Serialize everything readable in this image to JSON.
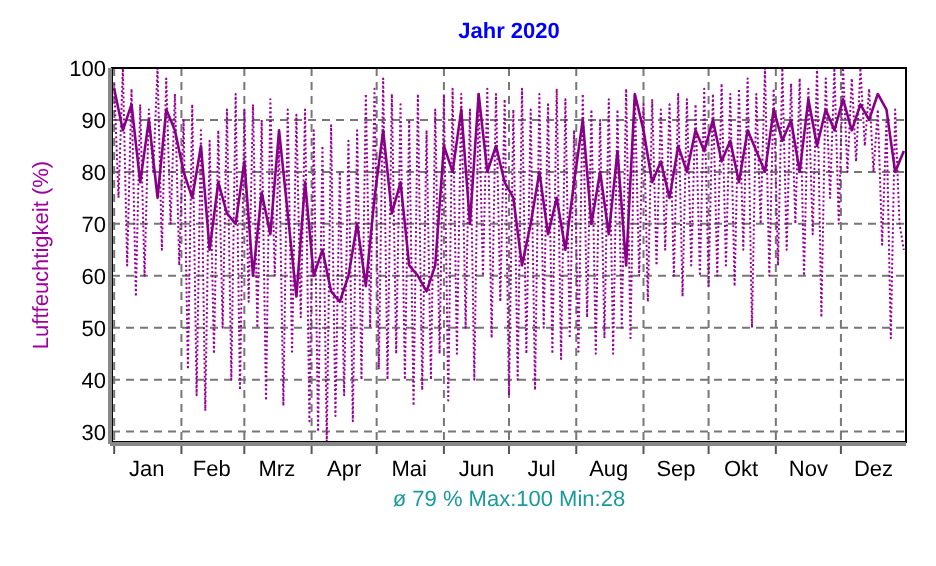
{
  "chart_data": {
    "type": "line",
    "title": "Jahr 2020",
    "ylabel": "Luftfeuchtigkeit (%)",
    "annotations": [
      "ø 79 % Max:100 Min:28"
    ],
    "xlim": [
      "2019-12-31",
      "2020-12-31"
    ],
    "ylim": [
      28,
      100
    ],
    "yticks": [
      30,
      40,
      50,
      60,
      70,
      80,
      90,
      100
    ],
    "xticks": [
      {
        "value": "2020-01-01",
        "label": null
      },
      {
        "value": "2020-01-16",
        "label": "Jan"
      },
      {
        "value": "2020-02-01",
        "label": null
      },
      {
        "value": "2020-02-15",
        "label": "Feb"
      },
      {
        "value": "2020-03-01",
        "label": null
      },
      {
        "value": "2020-03-16",
        "label": "Mrz"
      },
      {
        "value": "2020-04-01",
        "label": null
      },
      {
        "value": "2020-04-16",
        "label": "Apr"
      },
      {
        "value": "2020-05-01",
        "label": null
      },
      {
        "value": "2020-05-16",
        "label": "Mai"
      },
      {
        "value": "2020-06-01",
        "label": null
      },
      {
        "value": "2020-06-16",
        "label": "Jun"
      },
      {
        "value": "2020-07-01",
        "label": null
      },
      {
        "value": "2020-07-16",
        "label": "Jul"
      },
      {
        "value": "2020-08-01",
        "label": null
      },
      {
        "value": "2020-08-16",
        "label": "Aug"
      },
      {
        "value": "2020-09-01",
        "label": null
      },
      {
        "value": "2020-09-16",
        "label": "Sep"
      },
      {
        "value": "2020-10-01",
        "label": null
      },
      {
        "value": "2020-10-16",
        "label": "Okt"
      },
      {
        "value": "2020-11-01",
        "label": null
      },
      {
        "value": "2020-11-16",
        "label": "Nov"
      },
      {
        "value": "2020-12-01",
        "label": null
      },
      {
        "value": "2020-12-16",
        "label": "Dez"
      }
    ],
    "grid": true,
    "marker": "none",
    "series": [
      {
        "color": "#990099",
        "line_style": "dotted",
        "x": [
          "2020-01-01",
          "2020-01-03",
          "2020-01-05",
          "2020-01-07",
          "2020-01-09",
          "2020-01-11",
          "2020-01-13",
          "2020-01-15",
          "2020-01-17",
          "2020-01-19",
          "2020-01-21",
          "2020-01-23",
          "2020-01-25",
          "2020-01-27",
          "2020-01-29",
          "2020-01-31",
          "2020-02-02",
          "2020-02-04",
          "2020-02-06",
          "2020-02-08",
          "2020-02-10",
          "2020-02-12",
          "2020-02-14",
          "2020-02-16",
          "2020-02-18",
          "2020-02-20",
          "2020-02-22",
          "2020-02-24",
          "2020-02-26",
          "2020-02-28",
          "2020-03-01",
          "2020-03-03",
          "2020-03-05",
          "2020-03-07",
          "2020-03-09",
          "2020-03-11",
          "2020-03-13",
          "2020-03-15",
          "2020-03-17",
          "2020-03-19",
          "2020-03-21",
          "2020-03-23",
          "2020-03-25",
          "2020-03-27",
          "2020-03-29",
          "2020-03-31",
          "2020-04-02",
          "2020-04-04",
          "2020-04-06",
          "2020-04-08",
          "2020-04-10",
          "2020-04-12",
          "2020-04-14",
          "2020-04-16",
          "2020-04-18",
          "2020-04-20",
          "2020-04-22",
          "2020-04-24",
          "2020-04-26",
          "2020-04-28",
          "2020-04-30",
          "2020-05-02",
          "2020-05-04",
          "2020-05-06",
          "2020-05-08",
          "2020-05-10",
          "2020-05-12",
          "2020-05-14",
          "2020-05-16",
          "2020-05-18",
          "2020-05-20",
          "2020-05-22",
          "2020-05-24",
          "2020-05-26",
          "2020-05-28",
          "2020-05-30",
          "2020-06-01",
          "2020-06-03",
          "2020-06-05",
          "2020-06-07",
          "2020-06-09",
          "2020-06-11",
          "2020-06-13",
          "2020-06-15",
          "2020-06-17",
          "2020-06-19",
          "2020-06-21",
          "2020-06-23",
          "2020-06-25",
          "2020-06-27",
          "2020-06-29",
          "2020-07-01",
          "2020-07-03",
          "2020-07-05",
          "2020-07-07",
          "2020-07-09",
          "2020-07-11",
          "2020-07-13",
          "2020-07-15",
          "2020-07-17",
          "2020-07-19",
          "2020-07-21",
          "2020-07-23",
          "2020-07-25",
          "2020-07-27",
          "2020-07-29",
          "2020-07-31",
          "2020-08-02",
          "2020-08-04",
          "2020-08-06",
          "2020-08-08",
          "2020-08-10",
          "2020-08-12",
          "2020-08-14",
          "2020-08-16",
          "2020-08-18",
          "2020-08-20",
          "2020-08-22",
          "2020-08-24",
          "2020-08-26",
          "2020-08-28",
          "2020-08-30",
          "2020-09-01",
          "2020-09-03",
          "2020-09-05",
          "2020-09-07",
          "2020-09-09",
          "2020-09-11",
          "2020-09-13",
          "2020-09-15",
          "2020-09-17",
          "2020-09-19",
          "2020-09-21",
          "2020-09-23",
          "2020-09-25",
          "2020-09-27",
          "2020-09-29",
          "2020-10-01",
          "2020-10-03",
          "2020-10-05",
          "2020-10-07",
          "2020-10-09",
          "2020-10-11",
          "2020-10-13",
          "2020-10-15",
          "2020-10-17",
          "2020-10-19",
          "2020-10-21",
          "2020-10-23",
          "2020-10-25",
          "2020-10-27",
          "2020-10-29",
          "2020-10-31",
          "2020-11-02",
          "2020-11-04",
          "2020-11-06",
          "2020-11-08",
          "2020-11-10",
          "2020-11-12",
          "2020-11-14",
          "2020-11-16",
          "2020-11-18",
          "2020-11-20",
          "2020-11-22",
          "2020-11-24",
          "2020-11-26",
          "2020-11-28",
          "2020-11-30",
          "2020-12-02",
          "2020-12-04",
          "2020-12-06",
          "2020-12-08",
          "2020-12-10",
          "2020-12-12",
          "2020-12-14",
          "2020-12-16",
          "2020-12-18",
          "2020-12-20",
          "2020-12-22",
          "2020-12-24",
          "2020-12-26",
          "2020-12-28",
          "2020-12-30"
        ],
        "values": [
          97,
          75,
          100,
          62,
          96,
          56,
          93,
          60,
          92,
          80,
          100,
          65,
          98,
          70,
          95,
          62,
          90,
          42,
          93,
          37,
          88,
          34,
          86,
          45,
          88,
          50,
          92,
          40,
          95,
          38,
          92,
          55,
          93,
          50,
          90,
          36,
          94,
          60,
          85,
          35,
          92,
          45,
          91,
          52,
          92,
          32,
          88,
          30,
          85,
          28,
          89,
          33,
          80,
          37,
          86,
          32,
          88,
          40,
          95,
          50,
          96,
          42,
          98,
          40,
          95,
          45,
          93,
          40,
          90,
          35,
          95,
          38,
          88,
          40,
          92,
          45,
          95,
          36,
          96,
          45,
          95,
          50,
          92,
          40,
          95,
          60,
          96,
          48,
          95,
          55,
          94,
          37,
          92,
          40,
          96,
          45,
          92,
          38,
          95,
          50,
          93,
          45,
          96,
          44,
          94,
          48,
          88,
          45,
          95,
          52,
          92,
          45,
          90,
          48,
          94,
          45,
          92,
          50,
          96,
          48,
          95,
          60,
          93,
          55,
          94,
          62,
          92,
          65,
          93,
          60,
          95,
          56,
          94,
          62,
          93,
          60,
          96,
          58,
          95,
          60,
          97,
          62,
          95,
          58,
          96,
          65,
          98,
          50,
          95,
          70,
          100,
          60,
          96,
          62,
          100,
          65,
          97,
          70,
          98,
          60,
          96,
          68,
          100,
          52,
          98,
          75,
          100,
          70,
          100,
          80,
          98,
          82,
          100,
          85,
          96,
          80,
          92,
          66,
          90,
          48,
          92,
          70,
          65
        ]
      },
      {
        "color": "#880088",
        "line_style": "solid",
        "x": [
          "2020-01-01",
          "2020-01-05",
          "2020-01-09",
          "2020-01-13",
          "2020-01-17",
          "2020-01-21",
          "2020-01-25",
          "2020-01-29",
          "2020-02-02",
          "2020-02-06",
          "2020-02-10",
          "2020-02-14",
          "2020-02-18",
          "2020-02-22",
          "2020-02-26",
          "2020-03-01",
          "2020-03-05",
          "2020-03-09",
          "2020-03-13",
          "2020-03-17",
          "2020-03-21",
          "2020-03-25",
          "2020-03-29",
          "2020-04-02",
          "2020-04-06",
          "2020-04-10",
          "2020-04-14",
          "2020-04-18",
          "2020-04-22",
          "2020-04-26",
          "2020-04-30",
          "2020-05-04",
          "2020-05-08",
          "2020-05-12",
          "2020-05-16",
          "2020-05-20",
          "2020-05-24",
          "2020-05-28",
          "2020-06-01",
          "2020-06-05",
          "2020-06-09",
          "2020-06-13",
          "2020-06-17",
          "2020-06-21",
          "2020-06-25",
          "2020-06-29",
          "2020-07-03",
          "2020-07-07",
          "2020-07-11",
          "2020-07-15",
          "2020-07-19",
          "2020-07-23",
          "2020-07-27",
          "2020-07-31",
          "2020-08-04",
          "2020-08-08",
          "2020-08-12",
          "2020-08-16",
          "2020-08-20",
          "2020-08-24",
          "2020-08-28",
          "2020-09-01",
          "2020-09-05",
          "2020-09-09",
          "2020-09-13",
          "2020-09-17",
          "2020-09-21",
          "2020-09-25",
          "2020-09-29",
          "2020-10-03",
          "2020-10-07",
          "2020-10-11",
          "2020-10-15",
          "2020-10-19",
          "2020-10-23",
          "2020-10-27",
          "2020-10-31",
          "2020-11-04",
          "2020-11-08",
          "2020-11-12",
          "2020-11-16",
          "2020-11-20",
          "2020-11-24",
          "2020-11-28",
          "2020-12-02",
          "2020-12-06",
          "2020-12-10",
          "2020-12-14",
          "2020-12-18",
          "2020-12-22",
          "2020-12-26",
          "2020-12-30"
        ],
        "values": [
          96,
          88,
          93,
          78,
          90,
          75,
          92,
          88,
          80,
          75,
          85,
          65,
          78,
          72,
          70,
          82,
          60,
          76,
          68,
          88,
          72,
          56,
          78,
          60,
          65,
          57,
          55,
          60,
          70,
          58,
          75,
          88,
          72,
          78,
          62,
          60,
          57,
          62,
          85,
          80,
          92,
          70,
          95,
          80,
          85,
          78,
          75,
          62,
          70,
          80,
          68,
          75,
          65,
          78,
          90,
          70,
          80,
          68,
          84,
          62,
          95,
          88,
          78,
          82,
          75,
          85,
          80,
          88,
          84,
          90,
          82,
          86,
          78,
          88,
          84,
          80,
          92,
          86,
          90,
          80,
          94,
          85,
          92,
          88,
          94,
          88,
          93,
          90,
          95,
          92,
          80,
          84
        ]
      }
    ]
  }
}
